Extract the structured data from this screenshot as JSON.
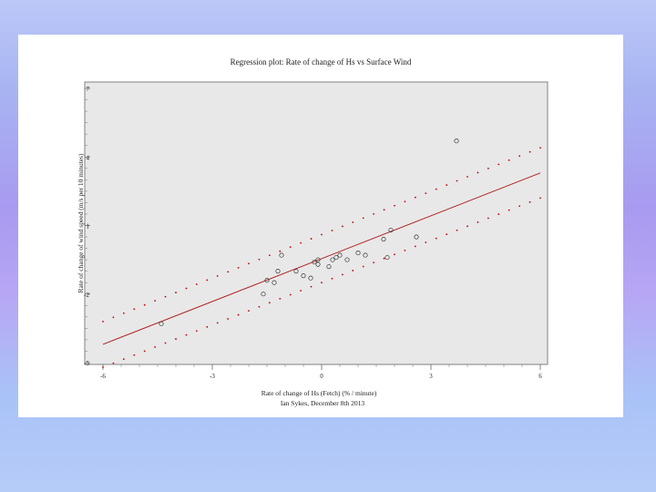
{
  "chart_data": {
    "type": "scatter",
    "title": "Regression plot: Rate of change of Hs vs Surface Wind",
    "xlabel": "Rate of change of Hs (Fetch) (% / minute)",
    "ylabel": "Rate of change of wind speed (m/s per 10 minutes)",
    "caption": "Ian Sykes, December 8th 2013",
    "xlim": [
      -6,
      6
    ],
    "ylim": [
      -5,
      7
    ],
    "x_ticks": [
      -6,
      -3,
      0,
      3,
      6
    ],
    "x_tick_labels": [
      "-6",
      "-3",
      "0",
      "3",
      "6"
    ],
    "y_ticks": [
      -5,
      -2,
      1,
      4,
      7
    ],
    "y_tick_labels": [
      "-5",
      "-2",
      "1",
      "4",
      "7"
    ],
    "grid": false,
    "legend": "none",
    "colors": {
      "plot_bg": "#e8e8e8",
      "fit_line": "#b22222",
      "confidence": "#cc0000",
      "points": "#333333"
    },
    "points": [
      {
        "x": -4.4,
        "y": -3.3
      },
      {
        "x": -1.1,
        "y": -0.3
      },
      {
        "x": -1.3,
        "y": -1.5
      },
      {
        "x": -1.2,
        "y": -1.0
      },
      {
        "x": -1.5,
        "y": -1.4
      },
      {
        "x": -1.6,
        "y": -2.0
      },
      {
        "x": -0.7,
        "y": -1.0
      },
      {
        "x": -0.5,
        "y": -1.2
      },
      {
        "x": -0.2,
        "y": -0.6
      },
      {
        "x": -0.1,
        "y": -0.7
      },
      {
        "x": -0.1,
        "y": -0.5
      },
      {
        "x": -0.3,
        "y": -1.3
      },
      {
        "x": 0.2,
        "y": -0.8
      },
      {
        "x": 0.3,
        "y": -0.5
      },
      {
        "x": 0.4,
        "y": -0.4
      },
      {
        "x": 0.5,
        "y": -0.3
      },
      {
        "x": 0.7,
        "y": -0.5
      },
      {
        "x": 1.0,
        "y": -0.2
      },
      {
        "x": 1.2,
        "y": -0.3
      },
      {
        "x": 1.7,
        "y": 0.4
      },
      {
        "x": 1.9,
        "y": 0.8
      },
      {
        "x": 1.8,
        "y": -0.4
      },
      {
        "x": 3.7,
        "y": 4.7
      },
      {
        "x": 2.6,
        "y": 0.5
      }
    ],
    "fit": {
      "x": [
        -6,
        6
      ],
      "y": [
        -4.2,
        3.3
      ]
    },
    "ci_upper": {
      "x": [
        -6,
        6
      ],
      "y": [
        -3.2,
        4.4
      ]
    },
    "ci_lower": {
      "x": [
        -6,
        6
      ],
      "y": [
        -5.2,
        2.2
      ]
    }
  }
}
